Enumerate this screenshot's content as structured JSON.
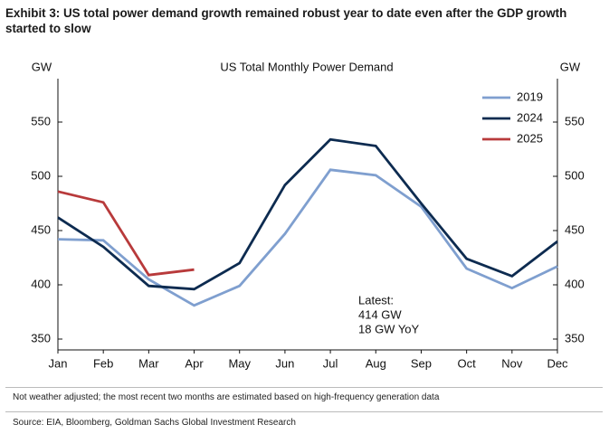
{
  "exhibit_title": "Exhibit 3: US total power demand growth remained robust year to date even after the GDP growth started to slow",
  "chart_data": {
    "type": "line",
    "title": "US Total Monthly Power Demand",
    "y_label": "GW",
    "y2_label": "GW",
    "categories": [
      "Jan",
      "Feb",
      "Mar",
      "Apr",
      "May",
      "Jun",
      "Jul",
      "Aug",
      "Sep",
      "Oct",
      "Nov",
      "Dec"
    ],
    "series": [
      {
        "name": "2019",
        "color": "#7f9fcf",
        "values": [
          442,
          441,
          405,
          381,
          399,
          447,
          506,
          501,
          472,
          415,
          397,
          417
        ]
      },
      {
        "name": "2024",
        "color": "#0d2b50",
        "values": [
          462,
          435,
          399,
          396,
          420,
          492,
          534,
          528,
          475,
          424,
          408,
          440
        ]
      },
      {
        "name": "2025",
        "color": "#b83a3b",
        "values": [
          486,
          476,
          409,
          414,
          null,
          null,
          null,
          null,
          null,
          null,
          null,
          null
        ]
      }
    ],
    "ylim": [
      340,
      590
    ],
    "yticks": [
      350,
      400,
      450,
      500,
      550
    ],
    "y2lim": [
      340,
      590
    ],
    "y2ticks": [
      350,
      400,
      450,
      500,
      550
    ],
    "annotation": [
      "Latest:",
      "414 GW",
      "18 GW YoY"
    ],
    "legend": "upper right"
  },
  "note": "Not weather adjusted; the most recent two months are estimated based on high-frequency generation data",
  "source": "Source: EIA, Bloomberg, Goldman Sachs Global Investment Research"
}
